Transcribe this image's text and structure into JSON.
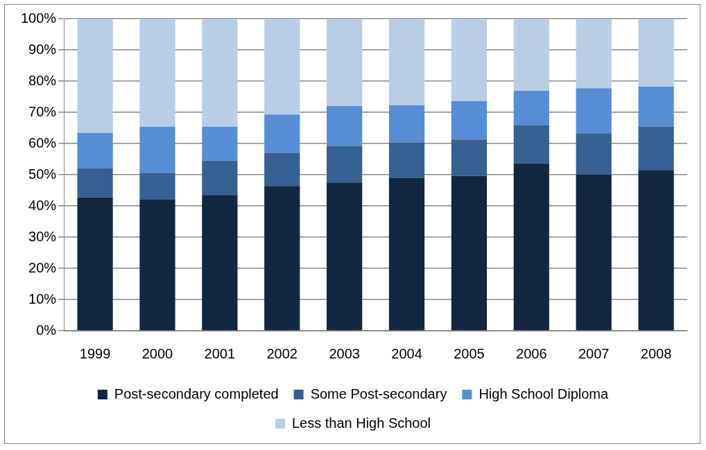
{
  "chart_data": {
    "type": "bar",
    "stacked": true,
    "categories": [
      "1999",
      "2000",
      "2001",
      "2002",
      "2003",
      "2004",
      "2005",
      "2006",
      "2007",
      "2008"
    ],
    "series": [
      {
        "name": "Post-secondary completed",
        "color": "#12263f",
        "values": [
          42.7,
          42.0,
          43.5,
          46.4,
          47.5,
          48.9,
          49.6,
          53.6,
          50.0,
          51.5
        ]
      },
      {
        "name": "Some Post-secondary",
        "color": "#366092",
        "values": [
          9.3,
          8.6,
          11.0,
          10.5,
          11.7,
          11.5,
          11.7,
          12.2,
          13.3,
          13.9
        ]
      },
      {
        "name": "High School Diploma",
        "color": "#558ed5",
        "values": [
          11.4,
          14.8,
          10.9,
          12.4,
          12.8,
          11.8,
          12.3,
          11.1,
          14.4,
          12.8
        ]
      },
      {
        "name": "Less than High School",
        "color": "#b9cde5",
        "values": [
          36.6,
          34.6,
          34.6,
          30.7,
          28.0,
          27.8,
          26.4,
          23.1,
          22.3,
          21.8
        ]
      }
    ],
    "ylim": [
      0,
      100
    ],
    "yticks": [
      {
        "value": 0,
        "label": "0%"
      },
      {
        "value": 10,
        "label": "10%"
      },
      {
        "value": 20,
        "label": "20%"
      },
      {
        "value": 30,
        "label": "30%"
      },
      {
        "value": 40,
        "label": "40%"
      },
      {
        "value": 50,
        "label": "50%"
      },
      {
        "value": 60,
        "label": "60%"
      },
      {
        "value": 70,
        "label": "70%"
      },
      {
        "value": 80,
        "label": "80%"
      },
      {
        "value": 90,
        "label": "90%"
      },
      {
        "value": 100,
        "label": "100%"
      }
    ],
    "grid": "y",
    "legend": "bottom"
  }
}
